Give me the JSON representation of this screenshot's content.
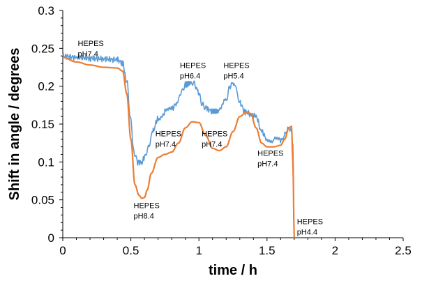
{
  "chart_data": {
    "type": "line",
    "title": "",
    "xlabel": "time / h",
    "ylabel": "Shift in angle / degrees",
    "xlim": [
      0,
      2.5
    ],
    "ylim": [
      0,
      0.3
    ],
    "x_ticks": [
      "0",
      "0.5",
      "1",
      "1.5",
      "2",
      "2.5"
    ],
    "y_ticks": [
      "0",
      "0.05",
      "0.1",
      "0.15",
      "0.2",
      "0.25",
      "0.3"
    ],
    "grid": false,
    "legend": "none",
    "series": [
      {
        "color": "#5b9bd5",
        "x": [
          0,
          0.1,
          0.2,
          0.3,
          0.4,
          0.44,
          0.47,
          0.5,
          0.52,
          0.55,
          0.58,
          0.6,
          0.63,
          0.66,
          0.7,
          0.75,
          0.8,
          0.84,
          0.87,
          0.9,
          0.95,
          0.98,
          1.0,
          1.03,
          1.06,
          1.1,
          1.15,
          1.2,
          1.23,
          1.25,
          1.27,
          1.3,
          1.34,
          1.38,
          1.42,
          1.46,
          1.5,
          1.55,
          1.6,
          1.62,
          1.64,
          1.66,
          1.68,
          1.69,
          1.7
        ],
        "y": [
          0.24,
          0.238,
          0.237,
          0.236,
          0.235,
          0.23,
          0.205,
          0.155,
          0.115,
          0.1,
          0.1,
          0.105,
          0.12,
          0.14,
          0.158,
          0.166,
          0.17,
          0.178,
          0.192,
          0.202,
          0.205,
          0.2,
          0.188,
          0.175,
          0.17,
          0.167,
          0.167,
          0.182,
          0.2,
          0.205,
          0.198,
          0.178,
          0.166,
          0.163,
          0.16,
          0.14,
          0.13,
          0.129,
          0.128,
          0.132,
          0.14,
          0.145,
          0.14,
          0.12,
          0.0
        ]
      },
      {
        "color": "#ed7d31",
        "x": [
          0,
          0.1,
          0.2,
          0.3,
          0.4,
          0.44,
          0.47,
          0.5,
          0.53,
          0.56,
          0.58,
          0.6,
          0.62,
          0.65,
          0.7,
          0.75,
          0.8,
          0.85,
          0.9,
          0.95,
          1.0,
          1.05,
          1.1,
          1.15,
          1.2,
          1.25,
          1.3,
          1.35,
          1.38,
          1.42,
          1.46,
          1.5,
          1.55,
          1.6,
          1.63,
          1.66,
          1.68,
          1.69,
          1.7
        ],
        "y": [
          0.238,
          0.232,
          0.228,
          0.225,
          0.224,
          0.22,
          0.19,
          0.13,
          0.07,
          0.056,
          0.052,
          0.053,
          0.063,
          0.085,
          0.106,
          0.11,
          0.113,
          0.125,
          0.145,
          0.153,
          0.152,
          0.135,
          0.118,
          0.115,
          0.12,
          0.14,
          0.16,
          0.166,
          0.164,
          0.145,
          0.125,
          0.12,
          0.12,
          0.122,
          0.13,
          0.145,
          0.147,
          0.1,
          0.0
        ]
      }
    ],
    "annotations": [
      {
        "line1": "HEPES",
        "line2": "pH7.4",
        "x": 0.11,
        "y": 0.253
      },
      {
        "line1": "HEPES",
        "line2": "pH6.4",
        "x": 0.86,
        "y": 0.224
      },
      {
        "line1": "HEPES",
        "line2": "pH5.4",
        "x": 1.18,
        "y": 0.224
      },
      {
        "line1": "HEPES",
        "line2": "pH7.4",
        "x": 0.68,
        "y": 0.134
      },
      {
        "line1": "HEPES",
        "line2": "pH7.4",
        "x": 1.02,
        "y": 0.134
      },
      {
        "line1": "HEPES",
        "line2": "pH8.4",
        "x": 0.52,
        "y": 0.039
      },
      {
        "line1": "HEPES",
        "line2": "pH7.4",
        "x": 1.43,
        "y": 0.108
      },
      {
        "line1": "HEPES",
        "line2": "pH4.4",
        "x": 1.72,
        "y": 0.018
      }
    ]
  }
}
